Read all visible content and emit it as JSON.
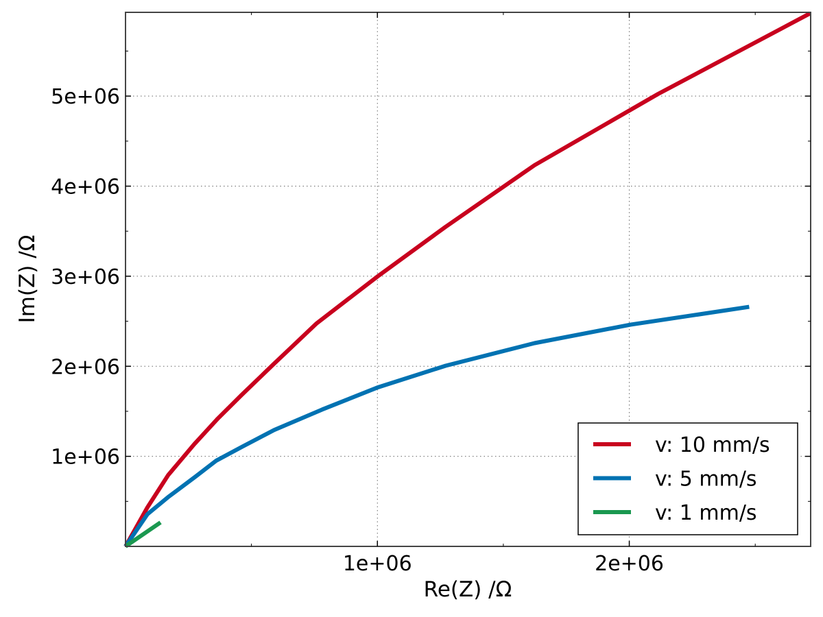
{
  "chart_data": {
    "type": "line",
    "title": "",
    "xlabel": "Re(Z) /Ω",
    "ylabel": "Im(Z) /Ω",
    "xlim": [
      0,
      2720000
    ],
    "ylim": [
      0,
      5930000
    ],
    "xticks": [
      {
        "value": 1000000,
        "label": "1e+06"
      },
      {
        "value": 2000000,
        "label": "2e+06"
      }
    ],
    "yticks": [
      {
        "value": 1000000,
        "label": "1e+06"
      },
      {
        "value": 2000000,
        "label": "2e+06"
      },
      {
        "value": 3000000,
        "label": "3e+06"
      },
      {
        "value": 4000000,
        "label": "4e+06"
      },
      {
        "value": 5000000,
        "label": "5e+06"
      }
    ],
    "grid": true,
    "legend_position": "bottom-right",
    "series": [
      {
        "name": "v: 10 mm/s",
        "color": "#c8001e",
        "x": [
          0,
          87000,
          169000,
          272000,
          367000,
          460000,
          590000,
          759000,
          999000,
          1271000,
          1624000,
          2114000,
          2718000
        ],
        "y": [
          0,
          433000,
          790000,
          1132000,
          1421000,
          1679000,
          2029000,
          2477000,
          2994000,
          3549000,
          4233000,
          5023000,
          5919000
        ]
      },
      {
        "name": "v: 5 mm/s",
        "color": "#0072b2",
        "x": [
          0,
          87000,
          169000,
          278000,
          359000,
          460000,
          590000,
          781000,
          999000,
          1271000,
          1624000,
          2005000,
          2476000
        ],
        "y": [
          0,
          357000,
          547000,
          775000,
          950000,
          1102000,
          1292000,
          1520000,
          1763000,
          2006000,
          2257000,
          2462000,
          2660000
        ]
      },
      {
        "name": "v: 1 mm/s",
        "color": "#1a9850",
        "x": [
          0,
          139000
        ],
        "y": [
          0,
          266000
        ]
      }
    ]
  }
}
